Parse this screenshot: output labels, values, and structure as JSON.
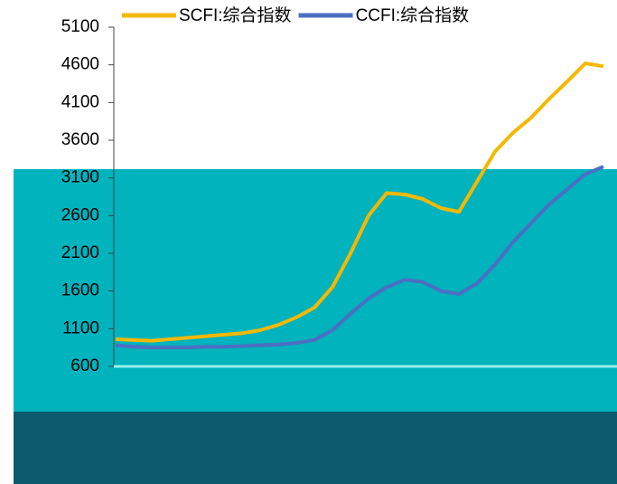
{
  "chart_data": {
    "type": "line",
    "categories": [
      null,
      null,
      null,
      null,
      null,
      null,
      null,
      null,
      null,
      null,
      null,
      null,
      null,
      null,
      null,
      null,
      null,
      null,
      null,
      null,
      null,
      null,
      null,
      null,
      null,
      null,
      null,
      null
    ],
    "series": [
      {
        "name": "SCFI:综合指数",
        "color": "#f5b800",
        "values": [
          960,
          950,
          940,
          960,
          980,
          1000,
          1020,
          1040,
          1080,
          1150,
          1250,
          1380,
          1650,
          2100,
          2600,
          2900,
          2880,
          2820,
          2700,
          2650,
          3050,
          3450,
          3700,
          3900,
          4150,
          4380,
          4620,
          4580
        ]
      },
      {
        "name": "CCFI:综合指数",
        "color": "#4a6fc2",
        "values": [
          880,
          860,
          850,
          850,
          850,
          860,
          860,
          870,
          880,
          890,
          910,
          950,
          1080,
          1300,
          1500,
          1650,
          1750,
          1720,
          1600,
          1560,
          1700,
          1950,
          2250,
          2500,
          2750,
          2950,
          3150,
          3250
        ]
      }
    ],
    "ylim": [
      600,
      5100
    ],
    "yticks": [
      600,
      1100,
      1600,
      2100,
      2600,
      3100,
      3600,
      4100,
      4600,
      5100
    ],
    "legend": "top"
  }
}
